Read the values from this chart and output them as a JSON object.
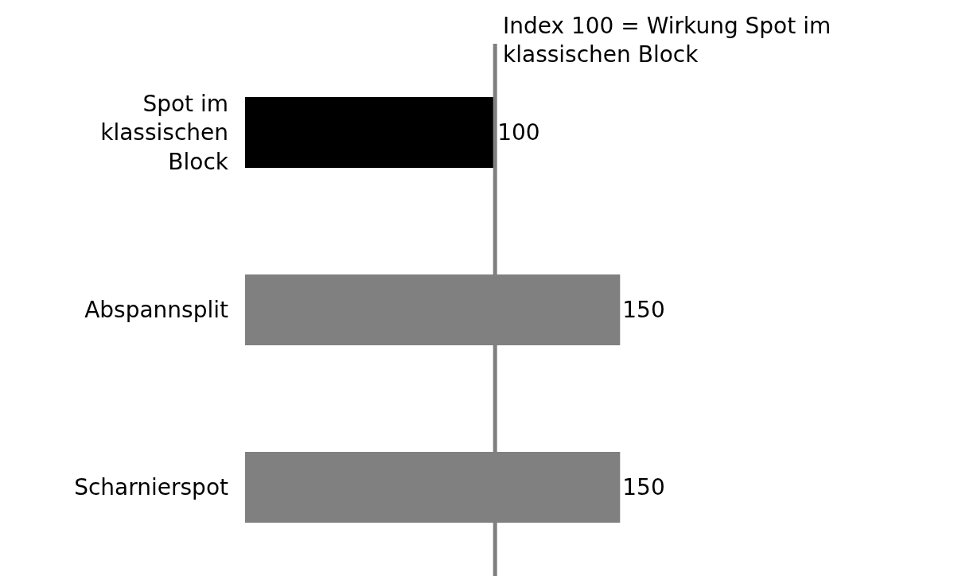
{
  "chart_data": {
    "type": "bar",
    "orientation": "horizontal",
    "categories": [
      "Spot im klassischen Block",
      "Abspannsplit",
      "Scharnierspot"
    ],
    "values": [
      100,
      150,
      150
    ],
    "colors": [
      "#000000",
      "#808080",
      "#808080"
    ],
    "data_labels": true,
    "tick_labels": "y",
    "ref_lines": [
      {
        "axis": "x",
        "value": 100,
        "label": "Index 100 = Wirkung Spot im klassischen Block",
        "color": "#808080"
      }
    ]
  }
}
